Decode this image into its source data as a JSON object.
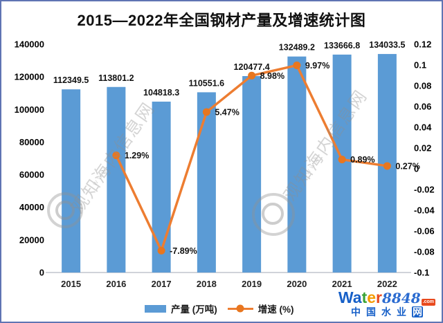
{
  "title": "2015—2022年全国钢材产量及增速统计图",
  "chart_data": {
    "type": "bar+line",
    "title": "2015—2022年全国钢材产量及增速统计图",
    "categories": [
      "2015",
      "2016",
      "2017",
      "2018",
      "2019",
      "2020",
      "2021",
      "2022"
    ],
    "series": [
      {
        "name": "产量 (万吨)",
        "type": "bar",
        "color": "#5B9BD5",
        "values": [
          112349.5,
          113801.2,
          104818.3,
          110551.6,
          120477.4,
          132489.2,
          133666.8,
          134033.5
        ],
        "labels": [
          "112349.5",
          "113801.2",
          "104818.3",
          "110551.6",
          "120477.4",
          "132489.2",
          "133666.8",
          "134033.5"
        ]
      },
      {
        "name": "增速 (%)",
        "type": "line",
        "color": "#ED7D31",
        "marker_color": "#e8761f",
        "values": [
          null,
          0.0129,
          -0.0789,
          0.0547,
          0.0898,
          0.0997,
          0.0089,
          0.0027
        ],
        "labels": [
          "",
          "1.29%",
          "-7.89%",
          "5.47%",
          "8.98%",
          "9.97%",
          "0.89%",
          "0.27%"
        ]
      }
    ],
    "left_axis": {
      "min": 0,
      "max": 140000,
      "step": 20000,
      "tick_labels": [
        "0",
        "20000",
        "40000",
        "60000",
        "80000",
        "100000",
        "120000",
        "140000"
      ]
    },
    "right_axis": {
      "min": -0.1,
      "max": 0.12,
      "step": 0.02,
      "tick_labels": [
        "0.12",
        "0.1",
        "0.08",
        "0.06",
        "0.04",
        "0.02",
        "0",
        "-0.02",
        "-0.04",
        "-0.06",
        "-0.08",
        "-0.1"
      ]
    },
    "grid": false,
    "legend_position": "bottom"
  },
  "legend": {
    "bar_label": "产量 (万吨)",
    "line_label": "增速 (%)"
  },
  "colors": {
    "bar": "#5B9BD5",
    "line": "#ED7D31",
    "frame_border": "#5f74b3",
    "axis_line": "#d0d3d9",
    "logo_blue": "#1760c8",
    "logo_red": "#e8491d"
  },
  "watermarks": {
    "diagonal_text": "观知海内信息网",
    "small_text": "www",
    "logo": {
      "water_parts": [
        {
          "text": "W",
          "color": "#1760c8"
        },
        {
          "text": "a",
          "color": "#1760c8"
        },
        {
          "text": "t",
          "color": "#3aa335"
        },
        {
          "text": "e",
          "color": "#f59b00"
        },
        {
          "text": "r",
          "color": "#e8491d"
        }
      ],
      "number": "8848",
      "com": ".com",
      "cn_text": "中国水业",
      "cn_last": "网"
    }
  }
}
